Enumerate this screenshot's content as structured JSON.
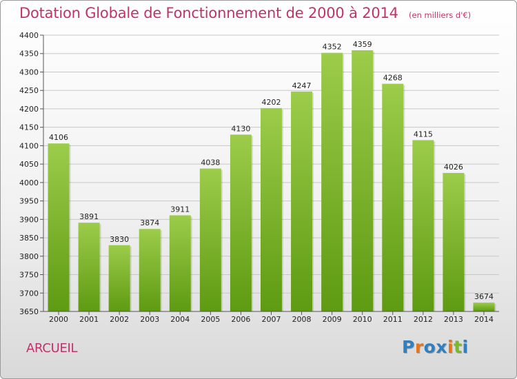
{
  "header": {
    "title": "Dotation Globale de Fonctionnement de 2000 à 2014",
    "subtitle": "(en milliers d'€)"
  },
  "footer": {
    "commune": "ARCUEIL",
    "logo": [
      "P",
      "r",
      "o",
      "x",
      "i",
      "t",
      "i"
    ]
  },
  "colors": {
    "title": "#c0336a",
    "bar_top": "#9ccc4a",
    "bar_bottom": "#5e9a12",
    "grid": "#c8c8c8",
    "logo": [
      "#2f7fc1",
      "#e8751a",
      "#2f7fc1",
      "#2f7fc1",
      "#e8751a",
      "#7ab82e",
      "#2f7fc1"
    ]
  },
  "chart_data": {
    "type": "bar",
    "title": "Dotation Globale de Fonctionnement de 2000 à 2014",
    "subtitle": "(en milliers d'€)",
    "categories": [
      "2000",
      "2001",
      "2002",
      "2003",
      "2004",
      "2005",
      "2006",
      "2007",
      "2008",
      "2009",
      "2010",
      "2011",
      "2012",
      "2013",
      "2014"
    ],
    "values": [
      4106,
      3891,
      3830,
      3874,
      3911,
      4038,
      4130,
      4202,
      4247,
      4352,
      4359,
      4268,
      4115,
      4026,
      3674
    ],
    "ylim": [
      3650,
      4400
    ],
    "yticks": [
      3650,
      3700,
      3750,
      3800,
      3850,
      3900,
      3950,
      4000,
      4050,
      4100,
      4150,
      4200,
      4250,
      4300,
      4350,
      4400
    ],
    "grid": true,
    "xlabel": "",
    "ylabel": ""
  }
}
